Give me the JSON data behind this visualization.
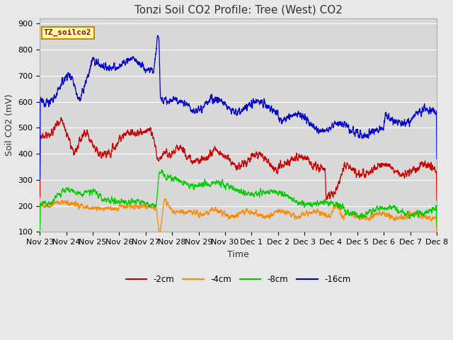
{
  "title": "Tonzi Soil CO2 Profile: Tree (West) CO2",
  "ylabel": "Soil CO2 (mV)",
  "xlabel": "Time",
  "ylim": [
    100,
    920
  ],
  "yticks": [
    100,
    200,
    300,
    400,
    500,
    600,
    700,
    800,
    900
  ],
  "fig_bg_color": "#e8e8e8",
  "plot_bg_color": "#d8d8d8",
  "grid_color": "#ffffff",
  "line_colors": {
    "neg2cm": "#cc0000",
    "neg4cm": "#ff8800",
    "neg8cm": "#00cc00",
    "neg16cm": "#0000cc"
  },
  "watermark_text": "TZ_soilco2",
  "watermark_bg": "#ffffaa",
  "watermark_border": "#cc8800",
  "title_fontsize": 11,
  "axis_label_fontsize": 9,
  "tick_label_fontsize": 8,
  "legend_labels": [
    "-2cm",
    "-4cm",
    "-8cm",
    "-16cm"
  ],
  "xtick_labels": [
    "Nov 23",
    "Nov 24",
    "Nov 25",
    "Nov 26",
    "Nov 27",
    "Nov 28",
    "Nov 29",
    "Nov 30",
    "Dec 1",
    "Dec 2",
    "Dec 3",
    "Dec 4",
    "Dec 5",
    "Dec 6",
    "Dec 7",
    "Dec 8"
  ]
}
